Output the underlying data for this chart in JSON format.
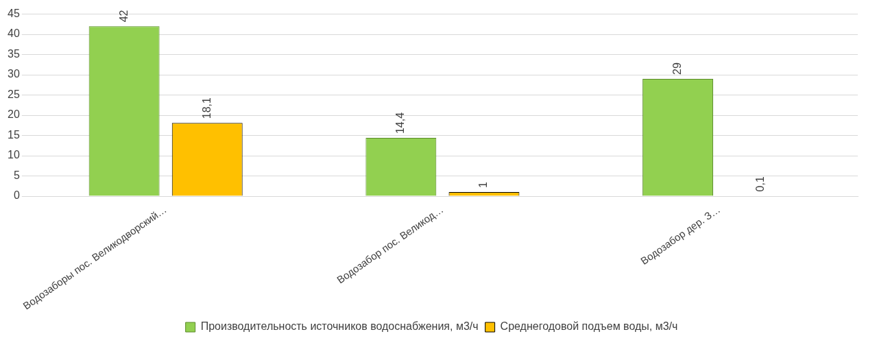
{
  "chart_data": {
    "type": "bar",
    "categories": [
      "Водозаборы пос. Великодворский…",
      "Водозабор пос. Великод…",
      "Водозабор дер. З…"
    ],
    "series": [
      {
        "name": "Производительность источников водоснабжения, м3/ч",
        "color": "#92d050",
        "values": [
          42,
          14.4,
          29
        ],
        "value_labels": [
          "42",
          "14,4",
          "29"
        ]
      },
      {
        "name": "Среднегодовой подъем воды, м3/ч",
        "color": "#ffc000",
        "values": [
          18.1,
          1,
          0.1
        ],
        "value_labels": [
          "18,1",
          "1",
          "0,1"
        ]
      }
    ],
    "ylim": [
      0,
      45
    ],
    "yticks": [
      0,
      5,
      10,
      15,
      20,
      25,
      30,
      35,
      40,
      45
    ],
    "grid": "y",
    "legend": "bottom"
  }
}
